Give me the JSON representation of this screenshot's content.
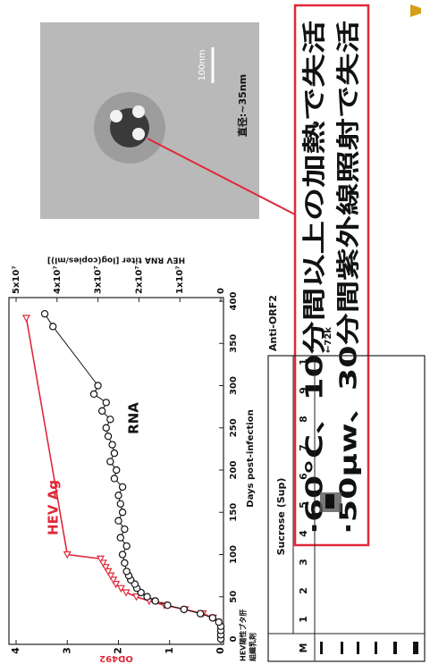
{
  "chart_data": {
    "type": "line",
    "xlabel": "Days post-infection",
    "ylabel": "OD492",
    "y2label": "HEV RNA titer [log(copies/ml)]",
    "note": [
      "HEV陽性ブタ肝",
      "組織乳剤"
    ],
    "xlim": [
      0,
      400
    ],
    "xticks": [
      0,
      50,
      100,
      150,
      200,
      250,
      300,
      350,
      400
    ],
    "ylim": [
      0,
      4
    ],
    "yticks": [
      0,
      1,
      2,
      3,
      4
    ],
    "y2lim": [
      0,
      50000000
    ],
    "y2ticks": [
      0,
      {
        "value": 10000000,
        "label": "1x10⁷"
      },
      {
        "value": 20000000,
        "label": "2x10⁷"
      },
      {
        "value": 30000000,
        "label": "3x10⁷"
      },
      {
        "value": 40000000,
        "label": "4x10⁷"
      },
      {
        "value": 50000000,
        "label": "5x10⁷"
      }
    ],
    "series": [
      {
        "name": "HEV Ag",
        "color": "#e0283a",
        "marker": "triangle",
        "x": [
          0,
          5,
          10,
          15,
          20,
          25,
          30,
          35,
          40,
          45,
          50,
          55,
          60,
          65,
          70,
          75,
          80,
          85,
          90,
          95,
          100,
          380
        ],
        "values": [
          0,
          0,
          0,
          0.02,
          0.05,
          0.15,
          0.35,
          0.7,
          1.1,
          1.4,
          1.65,
          1.85,
          1.95,
          2.05,
          2.1,
          2.15,
          2.2,
          2.25,
          2.3,
          2.35,
          3.0,
          3.8
        ]
      },
      {
        "name": "RNA",
        "color": "#111111",
        "marker": "circle",
        "axis": "y2",
        "x": [
          0,
          5,
          10,
          15,
          20,
          25,
          30,
          35,
          40,
          45,
          50,
          55,
          60,
          65,
          70,
          75,
          80,
          90,
          100,
          110,
          120,
          130,
          140,
          150,
          160,
          170,
          180,
          190,
          200,
          210,
          220,
          230,
          240,
          250,
          260,
          270,
          280,
          290,
          300,
          370,
          385
        ],
        "values": [
          0,
          0,
          0,
          0,
          500000,
          2000000,
          5000000,
          9000000,
          13000000,
          16000000,
          18000000,
          19500000,
          20500000,
          21000000,
          22000000,
          22500000,
          23000000,
          23500000,
          24000000,
          23000000,
          24500000,
          23500000,
          25000000,
          24000000,
          24500000,
          25000000,
          24000000,
          26000000,
          25500000,
          27000000,
          26000000,
          26500000,
          27500000,
          28000000,
          27000000,
          29000000,
          28000000,
          31000000,
          30000000,
          41000000,
          43000000
        ]
      }
    ]
  },
  "micrograph": {
    "scale_bar": "100nm",
    "diameter": "直径:~35nm"
  },
  "callout": {
    "lines": [
      "·60°C、10分間以上の加熱で失活",
      "·50μw、30分間紫外線照射で失活"
    ]
  },
  "blot": {
    "antibody": "Anti-ORF2",
    "header": "Sucrose (Sup)",
    "lanes": [
      "M",
      "1",
      "2",
      "3",
      "4",
      "5",
      "6",
      "7",
      "8",
      "9",
      "1"
    ],
    "marker": "←72k"
  }
}
